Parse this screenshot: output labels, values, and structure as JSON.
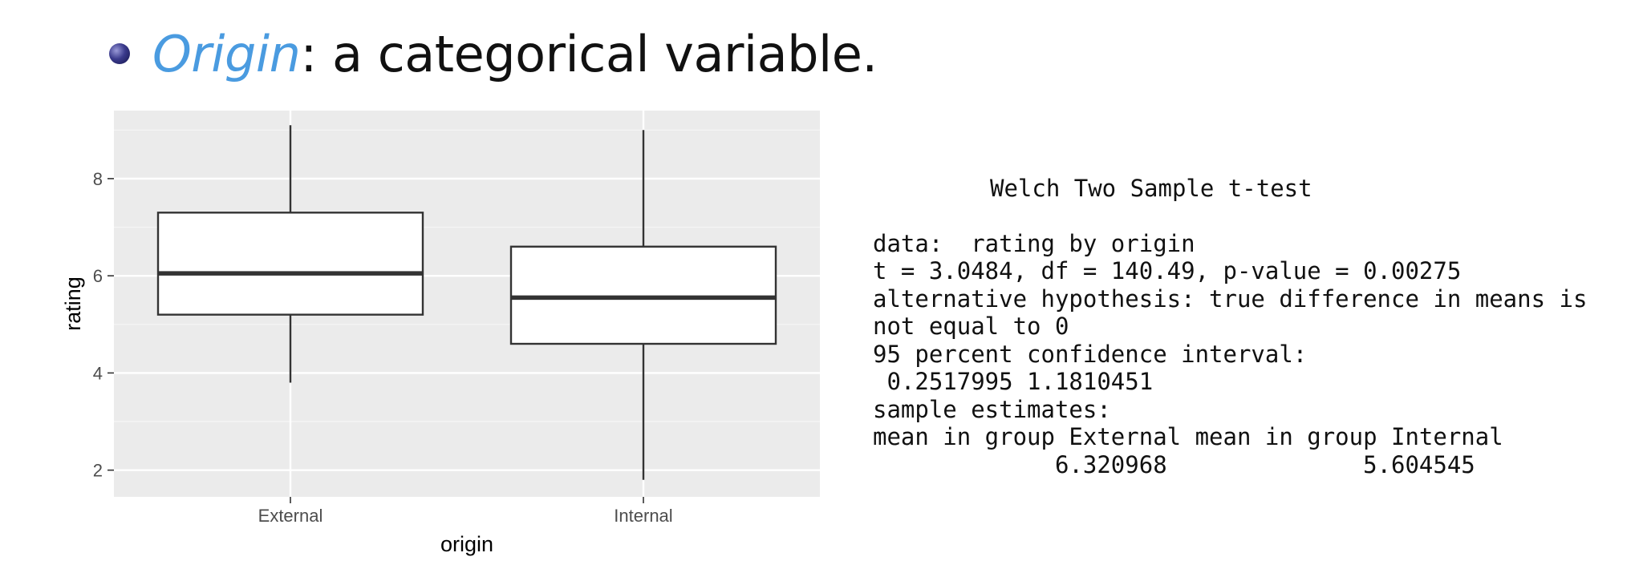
{
  "slide": {
    "bullet_term": "Origin",
    "bullet_rest": ": a categorical variable."
  },
  "chart_data": {
    "type": "boxplot",
    "categories": [
      "External",
      "Internal"
    ],
    "boxes": [
      {
        "category": "External",
        "lower_whisker": 3.8,
        "q1": 5.2,
        "median": 6.05,
        "q3": 7.3,
        "upper_whisker": 9.1
      },
      {
        "category": "Internal",
        "lower_whisker": 1.8,
        "q1": 4.6,
        "median": 5.55,
        "q3": 6.6,
        "upper_whisker": 9.0
      }
    ],
    "xlabel": "origin",
    "ylabel": "rating",
    "ylim": [
      1.45,
      9.4
    ],
    "yticks": [
      2,
      4,
      6,
      8
    ],
    "grid": true,
    "colors": {
      "panel": "#ebebeb",
      "grid_major": "#ffffff",
      "grid_minor": "#f5f5f5",
      "box_fill": "#ffffff",
      "box_line": "#333333",
      "tick_text": "#4d4d4d"
    }
  },
  "ttest": {
    "title": "Welch Two Sample t-test",
    "lines": [
      "data:  rating by origin",
      "t = 3.0484, df = 140.49, p-value = 0.00275",
      "alternative hypothesis: true difference in means is",
      "not equal to 0",
      "95 percent confidence interval:",
      " 0.2517995 1.1810451",
      "sample estimates:",
      "mean in group External mean in group Internal",
      "             6.320968              5.604545"
    ]
  }
}
